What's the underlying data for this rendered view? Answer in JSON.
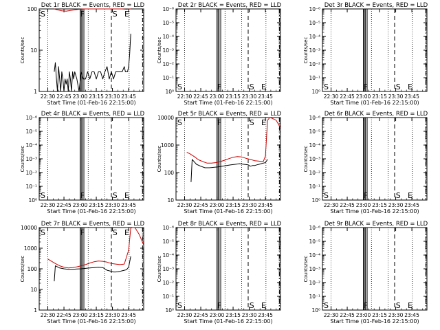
{
  "chart_data": [
    {
      "type": "line",
      "title": "Det 1r BLACK = Events, RED = LLD",
      "xlabel": "Start Time (01-Feb-16 22:15:00)",
      "ylabel": "Counts/sec",
      "xticks": [
        "22:30",
        "22:45",
        "23:00",
        "23:15",
        "23:30",
        "23:45"
      ],
      "yscale": "log",
      "ylim": [
        1,
        100
      ],
      "yticks": [
        "1",
        "10",
        "100"
      ],
      "xlim_min": [
        15,
        105
      ],
      "markers": [
        "S",
        "F",
        "S",
        "E"
      ],
      "series": [
        {
          "color": "#000000",
          "x_min": [
            21,
            22,
            23,
            24,
            25,
            26,
            27,
            28,
            29,
            30,
            31,
            32,
            33,
            34,
            35,
            36,
            37,
            38,
            39,
            40,
            42,
            44,
            46,
            48,
            50,
            52,
            54,
            56,
            58,
            60,
            62,
            64,
            66,
            68,
            70,
            72,
            74,
            76,
            78,
            80,
            82,
            84,
            86,
            87,
            88,
            89,
            90,
            91,
            92
          ],
          "y": [
            3,
            5,
            2,
            1,
            4,
            2,
            1,
            3,
            2,
            1,
            2,
            1.5,
            2,
            1,
            3,
            2,
            1,
            3,
            2,
            3,
            2,
            1,
            3,
            2,
            2,
            3,
            2,
            3,
            3,
            2,
            3,
            3,
            2,
            3,
            4,
            2,
            3,
            2,
            3,
            3,
            3,
            3,
            4,
            3,
            3,
            3,
            4,
            8,
            25
          ]
        },
        {
          "color": "#cc0000",
          "x_min": [
            21,
            24,
            28,
            32,
            36,
            40,
            44,
            48,
            52,
            56,
            60,
            64,
            68,
            72,
            76,
            80,
            84,
            88,
            92
          ],
          "y": [
            100,
            95,
            90,
            88,
            92,
            95,
            98,
            100,
            105,
            108,
            110,
            108,
            106,
            105,
            104,
            102,
            100,
            98,
            100
          ]
        }
      ]
    },
    {
      "type": "line",
      "title": "Det 2r BLACK = Events, RED = LLD",
      "xlabel": "Start Time (01-Feb-16 22:15:00)",
      "ylabel": "Counts/sec",
      "xticks": [
        "22:30",
        "22:45",
        "23:00",
        "23:15",
        "23:30",
        "23:45"
      ],
      "yscale": "log",
      "yticks": [
        "10⁰",
        "10⁻¹",
        "10⁻²",
        "10⁻³",
        "10⁻⁴",
        "10⁻⁵",
        "10⁻⁶"
      ],
      "markers": [
        "S",
        "F",
        "S",
        "E"
      ],
      "series": []
    },
    {
      "type": "line",
      "title": "Det 3r BLACK = Events, RED = LLD",
      "xlabel": "Start Time (01-Feb-16 22:15:00)",
      "ylabel": "Counts/sec",
      "xticks": [
        "22:30",
        "22:45",
        "23:00",
        "23:15",
        "23:30",
        "23:45"
      ],
      "yscale": "log",
      "yticks": [
        "10⁰",
        "10⁻¹",
        "10⁻²",
        "10⁻³",
        "10⁻⁴",
        "10⁻⁵",
        "10⁻⁶"
      ],
      "markers": [
        "S",
        "F",
        "S",
        "E"
      ],
      "series": []
    },
    {
      "type": "line",
      "title": "Det 4r BLACK = Events, RED = LLD",
      "xlabel": "Start Time (01-Feb-16 22:15:00)",
      "ylabel": "Counts/sec",
      "xticks": [
        "22:30",
        "22:45",
        "23:00",
        "23:15",
        "23:30",
        "23:45"
      ],
      "yscale": "log",
      "yticks": [
        "10⁰",
        "10⁻¹",
        "10⁻²",
        "10⁻³",
        "10⁻⁴",
        "10⁻⁵",
        "10⁻⁶"
      ],
      "markers": [
        "S",
        "F",
        "S",
        "E"
      ],
      "series": []
    },
    {
      "type": "line",
      "title": "Det 5r BLACK = Events, RED = LLD",
      "xlabel": "Start Time (01-Feb-16 22:15:00)",
      "ylabel": "Counts/sec",
      "xticks": [
        "22:30",
        "22:45",
        "23:00",
        "23:15",
        "23:30",
        "23:45"
      ],
      "yscale": "log",
      "ylim": [
        10,
        10000
      ],
      "yticks": [
        "10",
        "100",
        "1000",
        "10000"
      ],
      "markers": [
        "S",
        "F",
        "S",
        "E"
      ],
      "series": [
        {
          "color": "#000000",
          "x_min": [
            21,
            22,
            26,
            30,
            34,
            38,
            42,
            46,
            50,
            54,
            58,
            62,
            66,
            70,
            74,
            76,
            78,
            80,
            82,
            84,
            86,
            88,
            90,
            92
          ],
          "y": [
            45,
            300,
            200,
            170,
            150,
            150,
            155,
            160,
            170,
            180,
            190,
            200,
            210,
            200,
            190,
            170,
            180,
            180,
            190,
            200,
            210,
            220,
            230,
            300
          ]
        },
        {
          "color": "#cc0000",
          "x_min": [
            17,
            20,
            24,
            28,
            32,
            36,
            40,
            44,
            48,
            52,
            56,
            60,
            64,
            68,
            72,
            76,
            80,
            84,
            88,
            90,
            92,
            94,
            96,
            100,
            104
          ],
          "y": [
            550,
            480,
            380,
            290,
            250,
            220,
            220,
            230,
            250,
            280,
            320,
            360,
            380,
            370,
            330,
            300,
            270,
            260,
            250,
            400,
            8000,
            10000,
            9500,
            8000,
            4200
          ]
        }
      ]
    },
    {
      "type": "line",
      "title": "Det 6r BLACK = Events, RED = LLD",
      "xlabel": "Start Time (01-Feb-16 22:15:00)",
      "ylabel": "Counts/sec",
      "xticks": [
        "22:30",
        "22:45",
        "23:00",
        "23:15",
        "23:30",
        "23:45"
      ],
      "yscale": "log",
      "yticks": [
        "10⁰",
        "10⁻¹",
        "10⁻²",
        "10⁻³",
        "10⁻⁴",
        "10⁻⁵",
        "10⁻⁶"
      ],
      "markers": [
        "S",
        "F",
        "S",
        "E"
      ],
      "series": []
    },
    {
      "type": "line",
      "title": "Det 7r BLACK = Events, RED = LLD",
      "xlabel": "Start Time (01-Feb-16 22:15:00)",
      "ylabel": "Counts/sec",
      "xticks": [
        "22:30",
        "22:45",
        "23:00",
        "23:15",
        "23:30",
        "23:45"
      ],
      "yscale": "log",
      "ylim": [
        1,
        10000
      ],
      "yticks": [
        "1",
        "10",
        "100",
        "1000",
        "10000"
      ],
      "markers": [
        "S",
        "F",
        "S",
        "E"
      ],
      "series": [
        {
          "color": "#000000",
          "x_min": [
            21,
            22,
            26,
            30,
            34,
            38,
            42,
            46,
            50,
            54,
            58,
            62,
            66,
            70,
            72,
            74,
            76,
            78,
            80,
            82,
            84,
            86,
            88,
            90,
            92
          ],
          "y": [
            25,
            140,
            110,
            100,
            95,
            95,
            98,
            100,
            105,
            110,
            115,
            120,
            115,
            85,
            80,
            75,
            70,
            70,
            72,
            75,
            80,
            85,
            90,
            120,
            400
          ]
        },
        {
          "color": "#cc0000",
          "x_min": [
            15,
            18,
            22,
            26,
            30,
            34,
            38,
            42,
            46,
            50,
            54,
            58,
            62,
            66,
            70,
            74,
            78,
            82,
            86,
            90,
            92,
            94,
            96,
            100,
            104
          ],
          "y": [
            300,
            240,
            180,
            140,
            120,
            110,
            115,
            125,
            140,
            160,
            190,
            220,
            240,
            230,
            210,
            180,
            170,
            160,
            170,
            800,
            9500,
            10000,
            9800,
            4500,
            1400
          ]
        }
      ]
    },
    {
      "type": "line",
      "title": "Det 8r BLACK = Events, RED = LLD",
      "xlabel": "Start Time (01-Feb-16 22:15:00)",
      "ylabel": "Counts/sec",
      "xticks": [
        "22:30",
        "22:45",
        "23:00",
        "23:15",
        "23:30",
        "23:45"
      ],
      "yscale": "log",
      "yticks": [
        "10⁰",
        "10⁻¹",
        "10⁻²",
        "10⁻³",
        "10⁻⁴",
        "10⁻⁵",
        "10⁻⁶"
      ],
      "markers": [
        "S",
        "F",
        "S",
        "E"
      ],
      "series": []
    },
    {
      "type": "line",
      "title": "Det 9r BLACK = Events, RED = LLD",
      "xlabel": "Start Time (01-Feb-16 22:15:00)",
      "ylabel": "Counts/sec",
      "xticks": [
        "22:30",
        "22:45",
        "23:00",
        "23:15",
        "23:30",
        "23:45"
      ],
      "yscale": "log",
      "yticks": [
        "10⁰",
        "10⁻¹",
        "10⁻²",
        "10⁻³",
        "10⁻⁴",
        "10⁻⁵",
        "10⁻⁶"
      ],
      "markers": [
        "S",
        "F",
        "S",
        "E"
      ],
      "series": []
    }
  ]
}
